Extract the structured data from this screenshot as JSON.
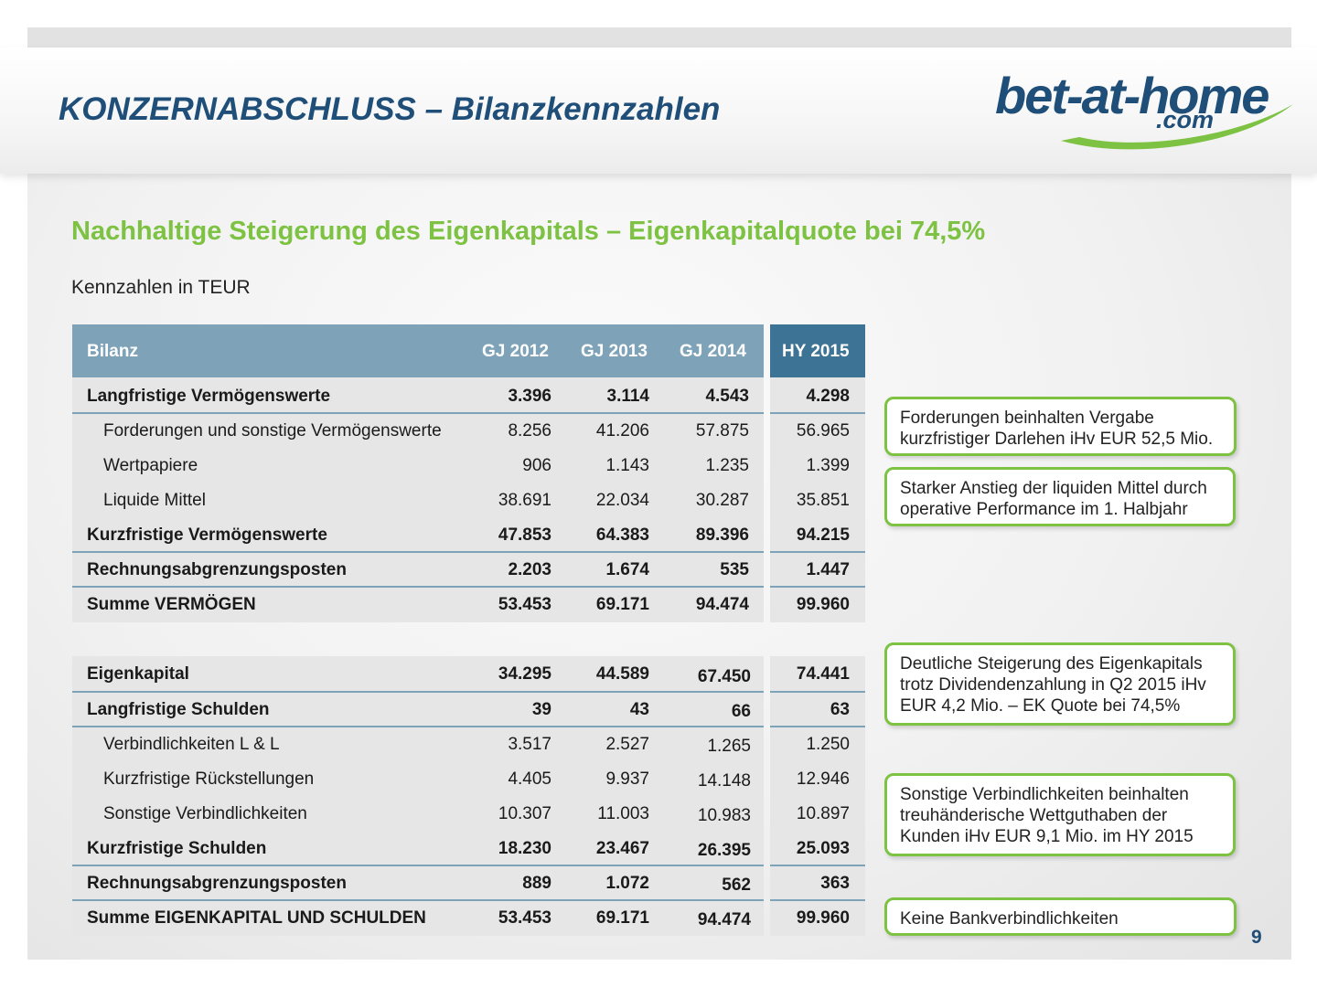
{
  "title": "KONZERNABSCHLUSS – Bilanzkennzahlen",
  "logo": {
    "main": "bet-at-home",
    "sub": ".com",
    "colors": {
      "text": "#1f4e79",
      "swoosh": "#7dc242"
    }
  },
  "subtitle": "Nachhaltige Steigerung des Eigenkapitals – Eigenkapitalquote bei 74,5%",
  "unit_label": "Kennzahlen in TEUR",
  "table": {
    "headers": [
      "Bilanz",
      "GJ 2012",
      "GJ 2013",
      "GJ 2014",
      "HY 2015"
    ],
    "rows": [
      {
        "label": "Langfristige Vermögenswerte",
        "values": [
          "3.396",
          "3.114",
          "4.543",
          "4.298"
        ]
      },
      {
        "label": "Forderungen und sonstige Vermögenswerte",
        "values": [
          "8.256",
          "41.206",
          "57.875",
          "56.965"
        ]
      },
      {
        "label": "Wertpapiere",
        "values": [
          "906",
          "1.143",
          "1.235",
          "1.399"
        ]
      },
      {
        "label": "Liquide Mittel",
        "values": [
          "38.691",
          "22.034",
          "30.287",
          "35.851"
        ]
      },
      {
        "label": "Kurzfristige Vermögenswerte",
        "values": [
          "47.853",
          "64.383",
          "89.396",
          "94.215"
        ]
      },
      {
        "label": "Rechnungsabgrenzungsposten",
        "values": [
          "2.203",
          "1.674",
          "535",
          "1.447"
        ]
      },
      {
        "label": "Summe VERMÖGEN",
        "values": [
          "53.453",
          "69.171",
          "94.474",
          "99.960"
        ]
      },
      {
        "label": "Eigenkapital",
        "values": [
          "34.295",
          "44.589",
          "67.450",
          "74.441"
        ]
      },
      {
        "label": "Langfristige Schulden",
        "values": [
          "39",
          "43",
          "66",
          "63"
        ]
      },
      {
        "label": "Verbindlichkeiten L & L",
        "values": [
          "3.517",
          "2.527",
          "1.265",
          "1.250"
        ]
      },
      {
        "label": "Kurzfristige Rückstellungen",
        "values": [
          "4.405",
          "9.937",
          "14.148",
          "12.946"
        ]
      },
      {
        "label": "Sonstige Verbindlichkeiten",
        "values": [
          "10.307",
          "11.003",
          "10.983",
          "10.897"
        ]
      },
      {
        "label": "Kurzfristige Schulden",
        "values": [
          "18.230",
          "23.467",
          "26.395",
          "25.093"
        ]
      },
      {
        "label": "Rechnungsabgrenzungsposten",
        "values": [
          "889",
          "1.072",
          "562",
          "363"
        ]
      },
      {
        "label": "Summe EIGENKAPITAL UND SCHULDEN",
        "values": [
          "53.453",
          "69.171",
          "94.474",
          "99.960"
        ]
      }
    ]
  },
  "notes": [
    [
      "Forderungen beinhalten Vergabe",
      "kurzfristiger Darlehen iHv EUR 52,5 Mio."
    ],
    [
      "Starker Anstieg der liquiden Mittel durch",
      "operative Performance im 1. Halbjahr"
    ],
    [
      "Deutliche Steigerung des Eigenkapitals",
      "trotz Dividendenzahlung in Q2 2015 iHv",
      "EUR 4,2 Mio. – EK Quote bei 74,5%"
    ],
    [
      "Sonstige Verbindlichkeiten beinhalten",
      "treuhänderische Wettguthaben der",
      "Kunden iHv EUR 9,1 Mio. im HY 2015"
    ],
    [
      "Keine Bankverbindlichkeiten"
    ]
  ],
  "page_number": "9",
  "colors": {
    "title": "#1f4e79",
    "accent_green": "#7dc242",
    "header_blue": "#7ea3b8",
    "header_dark": "#3d7394"
  }
}
